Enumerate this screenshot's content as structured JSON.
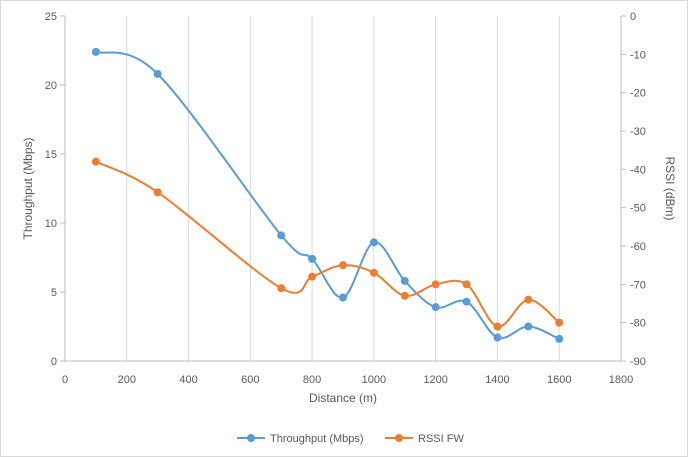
{
  "chart_data": {
    "type": "line",
    "title": "",
    "xlabel": "Distance (m)",
    "ylabel": "Throughput (Mbps)",
    "y2label": "RSSI (dBm)",
    "xlim": [
      0,
      1800
    ],
    "ylim": [
      0,
      25
    ],
    "y2lim": [
      -90,
      0
    ],
    "x_ticks": [
      0,
      200,
      400,
      600,
      800,
      1000,
      1200,
      1400,
      1600,
      1800
    ],
    "y_ticks": [
      0,
      5,
      10,
      15,
      20,
      25
    ],
    "y2_ticks": [
      0,
      -10,
      -20,
      -30,
      -40,
      -50,
      -60,
      -70,
      -80,
      -90
    ],
    "grid": "vertical",
    "legend": "bottom",
    "series": [
      {
        "name": "Throughput (Mbps)",
        "axis": "left",
        "color": "#5B9BD5",
        "x": [
          100,
          300,
          700,
          800,
          900,
          1000,
          1100,
          1200,
          1300,
          1400,
          1500,
          1600
        ],
        "values": [
          22.4,
          20.8,
          9.1,
          7.4,
          4.6,
          8.6,
          5.8,
          3.9,
          4.3,
          1.7,
          2.5,
          1.6
        ]
      },
      {
        "name": "RSSI FW",
        "axis": "right",
        "color": "#ED7D31",
        "x": [
          100,
          300,
          700,
          800,
          900,
          1000,
          1100,
          1200,
          1300,
          1400,
          1500,
          1600
        ],
        "values": [
          -38,
          -46,
          -71,
          -68,
          -65,
          -67,
          -73,
          -70,
          -70,
          -81,
          -74,
          -80
        ]
      }
    ]
  }
}
